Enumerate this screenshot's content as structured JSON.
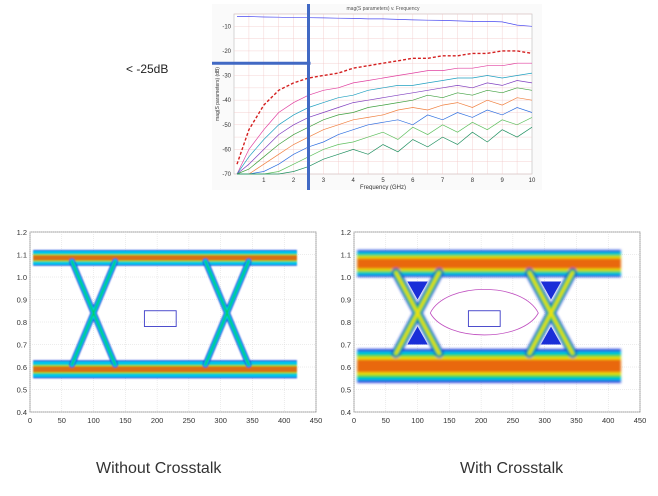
{
  "callout": {
    "label": "< -25dB"
  },
  "captions": {
    "left": "Without Crosstalk",
    "right": "With Crosstalk"
  },
  "colors": {
    "threshold_line": "#4169c4",
    "worst_case": "#d42020",
    "eye_mask": "#3b3bc8",
    "eye_hot": "#e84a10",
    "eye_warm": "#f7e200",
    "eye_mid": "#00d040",
    "eye_cool": "#00c8f0",
    "eye_cold": "#1a2ed8"
  },
  "chart_data": [
    {
      "type": "line",
      "title": "mag(S parameters) v. Frequency",
      "xlabel": "Frequency (GHz)",
      "ylabel": "mag(S parameters) (dB)",
      "x_ticks": [
        "1",
        "2",
        "3",
        "4",
        "5",
        "6",
        "7",
        "8",
        "9",
        "10"
      ],
      "y_ticks": [
        "-10",
        "-20",
        "-30",
        "-40",
        "-50",
        "-60",
        "-70"
      ],
      "xlim": [
        0,
        10
      ],
      "ylim": [
        -70,
        -5
      ],
      "grid": true,
      "threshold": {
        "value_db": -25,
        "freq_ghz": 2.5
      },
      "x": [
        0.1,
        0.5,
        1,
        1.5,
        2,
        2.5,
        3,
        3.5,
        4,
        4.5,
        5,
        5.5,
        6,
        6.5,
        7,
        7.5,
        8,
        8.5,
        9,
        9.5,
        10
      ],
      "series": [
        {
          "values": [
            -6,
            -6,
            -6.2,
            -6.3,
            -6.5,
            -6.5,
            -6.6,
            -6.7,
            -6.8,
            -7,
            -7,
            -7.2,
            -7.4,
            -7.5,
            -7.6,
            -7.8,
            -8,
            -8,
            -8.2,
            -9.5,
            -10
          ],
          "color": "#4a4af0"
        },
        {
          "values": [
            -66,
            -52,
            -42,
            -36,
            -33,
            -31,
            -30,
            -29,
            -27,
            -26,
            -25,
            -24,
            -23,
            -23,
            -22,
            -22,
            -21,
            -21,
            -20,
            -20,
            -21
          ],
          "color": "#d42020",
          "dashed": true
        },
        {
          "values": [
            -70,
            -60,
            -52,
            -45,
            -41,
            -38,
            -36,
            -35,
            -33,
            -32,
            -31,
            -30,
            -29,
            -28,
            -28,
            -27,
            -27,
            -26,
            -26,
            -25,
            -25
          ],
          "color": "#e040a0"
        },
        {
          "values": [
            -70,
            -63,
            -56,
            -50,
            -46,
            -43,
            -41,
            -39,
            -38,
            -36,
            -35,
            -34,
            -34,
            -33,
            -32,
            -31,
            -31,
            -30,
            -31,
            -30,
            -29
          ],
          "color": "#20a0c0"
        },
        {
          "values": [
            -70,
            -66,
            -60,
            -54,
            -50,
            -47,
            -45,
            -43,
            -41,
            -40,
            -39,
            -38,
            -37,
            -36,
            -35,
            -34,
            -35,
            -33,
            -34,
            -32,
            -33
          ],
          "color": "#8040c0"
        },
        {
          "values": [
            -70,
            -68,
            -63,
            -58,
            -54,
            -51,
            -48,
            -46,
            -45,
            -43,
            -42,
            -41,
            -40,
            -38,
            -39,
            -37,
            -38,
            -36,
            -37,
            -35,
            -36
          ],
          "color": "#40a040"
        },
        {
          "values": [
            -70,
            -70,
            -66,
            -62,
            -58,
            -55,
            -52,
            -50,
            -48,
            -47,
            -46,
            -44,
            -43,
            -44,
            -42,
            -41,
            -43,
            -40,
            -42,
            -39,
            -40
          ],
          "color": "#f08040"
        },
        {
          "values": [
            -70,
            -70,
            -69,
            -66,
            -62,
            -59,
            -57,
            -54,
            -52,
            -50,
            -49,
            -48,
            -50,
            -46,
            -48,
            -45,
            -47,
            -44,
            -46,
            -43,
            -45
          ],
          "color": "#3070e0"
        },
        {
          "values": [
            -70,
            -70,
            -70,
            -69,
            -66,
            -63,
            -60,
            -58,
            -57,
            -55,
            -53,
            -56,
            -51,
            -54,
            -50,
            -53,
            -49,
            -52,
            -48,
            -50,
            -47
          ],
          "color": "#60c060"
        },
        {
          "values": [
            -70,
            -70,
            -70,
            -70,
            -69,
            -67,
            -64,
            -62,
            -60,
            -62,
            -58,
            -61,
            -56,
            -59,
            -55,
            -58,
            -53,
            -57,
            -52,
            -55,
            -51
          ],
          "color": "#209060"
        }
      ]
    },
    {
      "type": "heatmap",
      "name": "eye-without-crosstalk",
      "x_ticks": [
        "0",
        "50",
        "100",
        "150",
        "200",
        "250",
        "300",
        "350",
        "400",
        "450"
      ],
      "y_ticks": [
        "1.2",
        "1.1",
        "1.0",
        "0.9",
        "0.8",
        "0.7",
        "0.6",
        "0.5",
        "0.4"
      ],
      "xlim": [
        0,
        450
      ],
      "ylim": [
        0.4,
        1.2
      ],
      "grid": true,
      "ui_ps": 210,
      "crossings_ps": [
        100,
        310
      ],
      "levels": {
        "high": [
          1.05,
          1.12
        ],
        "low": [
          0.55,
          0.63
        ]
      },
      "mask": {
        "x": [
          180,
          230
        ],
        "y": [
          0.78,
          0.85
        ]
      }
    },
    {
      "type": "heatmap",
      "name": "eye-with-crosstalk",
      "x_ticks": [
        "0",
        "50",
        "100",
        "150",
        "200",
        "250",
        "300",
        "350",
        "400",
        "450"
      ],
      "y_ticks": [
        "1.2",
        "1.1",
        "1.0",
        "0.9",
        "0.8",
        "0.7",
        "0.6",
        "0.5",
        "0.4"
      ],
      "xlim": [
        0,
        450
      ],
      "ylim": [
        0.4,
        1.2
      ],
      "grid": true,
      "ui_ps": 210,
      "crossings_ps": [
        100,
        310
      ],
      "levels": {
        "high": [
          1.0,
          1.12
        ],
        "low": [
          0.53,
          0.68
        ]
      },
      "mask": {
        "x": [
          180,
          230
        ],
        "y": [
          0.78,
          0.85
        ]
      }
    }
  ]
}
